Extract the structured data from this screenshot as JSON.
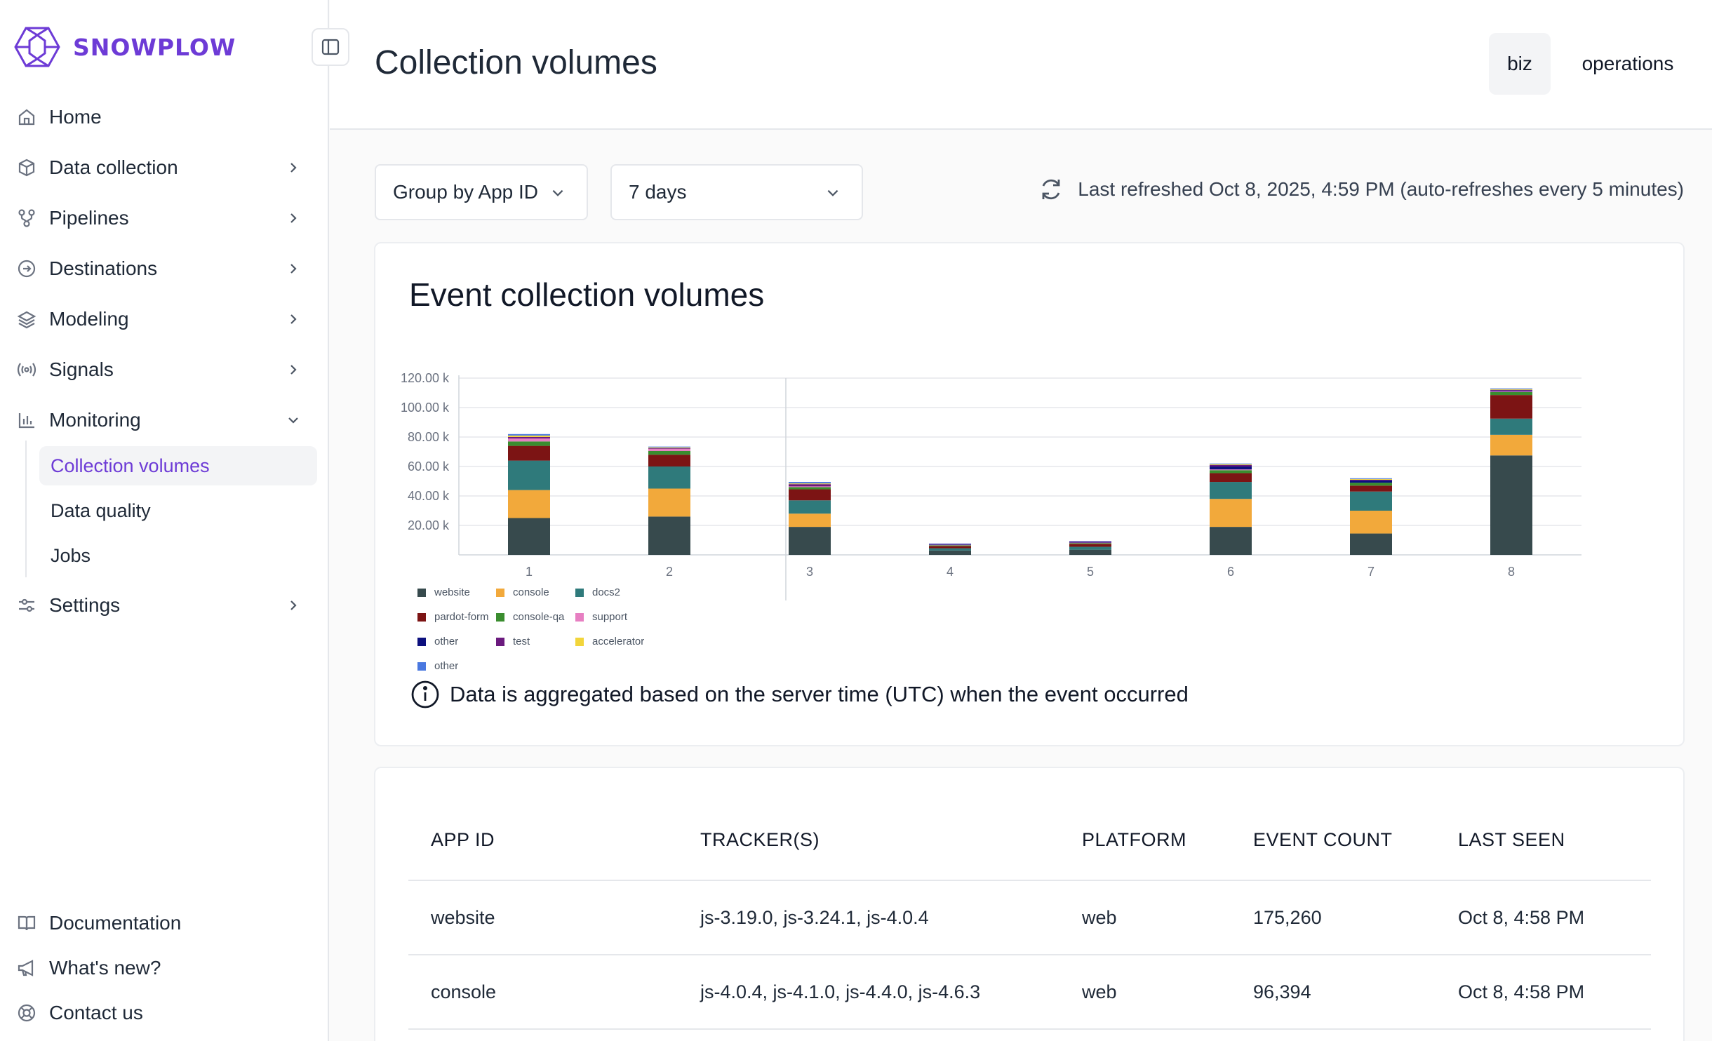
{
  "brand": {
    "name": "SNOWPLOW",
    "accent": "#6d3bd6"
  },
  "sidebar": {
    "items": [
      {
        "label": "Home",
        "icon": "home-icon"
      },
      {
        "label": "Data collection",
        "icon": "cube-icon"
      },
      {
        "label": "Pipelines",
        "icon": "pipeline-icon"
      },
      {
        "label": "Destinations",
        "icon": "arrow-circle-icon"
      },
      {
        "label": "Modeling",
        "icon": "layers-icon"
      },
      {
        "label": "Signals",
        "icon": "broadcast-icon"
      },
      {
        "label": "Monitoring",
        "icon": "bar-chart-icon"
      },
      {
        "label": "Settings",
        "icon": "sliders-icon"
      }
    ],
    "monitoring_sub": [
      "Collection volumes",
      "Data quality",
      "Jobs"
    ],
    "footer": [
      {
        "label": "Documentation",
        "icon": "book-icon"
      },
      {
        "label": "What's new?",
        "icon": "megaphone-icon"
      },
      {
        "label": "Contact us",
        "icon": "lifebuoy-icon"
      }
    ]
  },
  "header": {
    "title": "Collection volumes",
    "tabs": [
      "biz",
      "operations"
    ],
    "active_tab": "biz"
  },
  "controls": {
    "group_by": "Group by App ID",
    "range": "7 days",
    "refresh_text": "Last refreshed Oct 8, 2025, 4:59 PM (auto-refreshes every 5 minutes)"
  },
  "chart_card": {
    "title": "Event collection volumes",
    "note": "Data is aggregated based on the server time (UTC) when the event occurred"
  },
  "chart_data": {
    "type": "bar",
    "stacked": true,
    "categories": [
      "1",
      "2",
      "3",
      "4",
      "5",
      "6",
      "7",
      "8"
    ],
    "y_ticks": [
      "20.00 k",
      "40.00 k",
      "60.00 k",
      "80.00 k",
      "100.00 k",
      "120.00 k"
    ],
    "ylim": [
      0,
      120000
    ],
    "grid": true,
    "legend_position": "bottom-left",
    "series": [
      {
        "name": "website",
        "color": "#374a4d",
        "values": [
          25000,
          26000,
          19000,
          3000,
          3500,
          19000,
          14500,
          67500
        ]
      },
      {
        "name": "console",
        "color": "#f2a93b",
        "values": [
          19000,
          19000,
          9000,
          0,
          0,
          19000,
          15500,
          14000
        ]
      },
      {
        "name": "docs2",
        "color": "#2f7a7b",
        "values": [
          20000,
          15000,
          9000,
          1500,
          2000,
          11500,
          13000,
          11000
        ]
      },
      {
        "name": "pardot-form",
        "color": "#7c1414",
        "values": [
          10000,
          8000,
          7500,
          1500,
          2000,
          6000,
          4000,
          16000
        ]
      },
      {
        "name": "console-qa",
        "color": "#3a8d2f",
        "values": [
          3000,
          2500,
          1500,
          500,
          500,
          2000,
          2000,
          2000
        ]
      },
      {
        "name": "support",
        "color": "#e77fc2",
        "values": [
          2000,
          1500,
          500,
          300,
          300,
          500,
          0,
          500
        ]
      },
      {
        "name": "other",
        "color": "#0c107e",
        "values": [
          0,
          0,
          0,
          300,
          300,
          2000,
          1500,
          500
        ]
      },
      {
        "name": "test",
        "color": "#6b1a7e",
        "values": [
          1000,
          500,
          1500,
          300,
          500,
          1000,
          500,
          500
        ]
      },
      {
        "name": "accelerator",
        "color": "#f2d53b",
        "values": [
          1000,
          500,
          500,
          0,
          0,
          500,
          500,
          500
        ]
      },
      {
        "name": "other",
        "color": "#4a78e0",
        "values": [
          1000,
          500,
          1000,
          300,
          300,
          500,
          500,
          500
        ]
      }
    ]
  },
  "table": {
    "headers": [
      "APP ID",
      "TRACKER(S)",
      "PLATFORM",
      "EVENT COUNT",
      "LAST SEEN"
    ],
    "rows": [
      [
        "website",
        "js-3.19.0, js-3.24.1, js-4.0.4",
        "web",
        "175,260",
        "Oct 8, 4:58 PM"
      ],
      [
        "console",
        "js-4.0.4, js-4.1.0, js-4.4.0, js-4.6.3",
        "web",
        "96,394",
        "Oct 8, 4:58 PM"
      ]
    ]
  }
}
